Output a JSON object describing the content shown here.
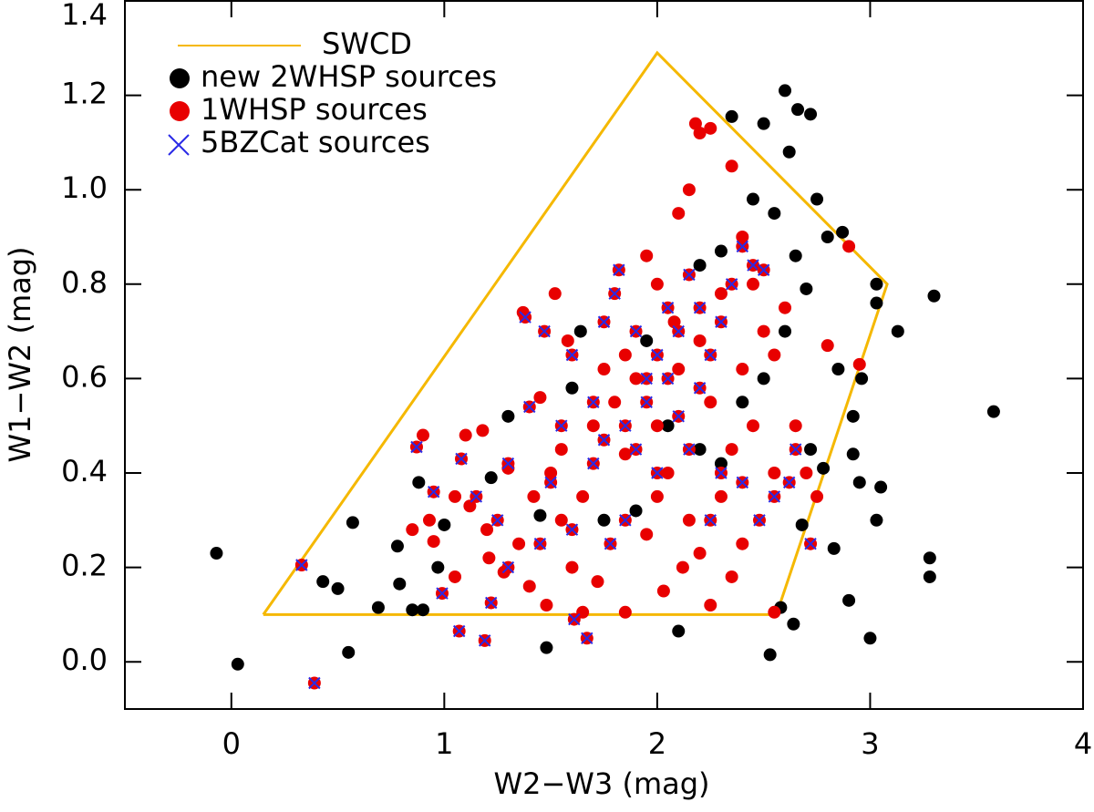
{
  "chart_data": {
    "type": "scatter",
    "xlabel": "W2−W3 (mag)",
    "ylabel": "W1−W2 (mag)",
    "xlim": [
      -0.5,
      4
    ],
    "ylim": [
      -0.1,
      1.4
    ],
    "xticks": [
      0,
      1,
      2,
      3,
      4
    ],
    "yticks": [
      {
        "value": 0.0,
        "label": "0.0"
      },
      0.2,
      0.4,
      0.6,
      0.8,
      {
        "value": 1.0,
        "label": "1.0"
      },
      1.2,
      1.4
    ],
    "legend": "upper left",
    "series": [
      {
        "name": "SWCD",
        "marker": "line",
        "color": "#f5b800",
        "x": [
          0.15,
          2.0,
          3.08,
          2.56,
          0.15
        ],
        "y": [
          0.1,
          1.29,
          0.8,
          0.1,
          0.1
        ]
      },
      {
        "name": "new 2WHSP sources",
        "marker": "o",
        "color": "#000000",
        "x": [
          -0.07,
          0.03,
          0.43,
          0.5,
          0.55,
          0.57,
          0.69,
          0.78,
          0.79,
          0.85,
          0.88,
          0.9,
          0.97,
          1.0,
          1.22,
          1.3,
          1.48,
          1.45,
          1.6,
          1.64,
          2.1,
          2.53,
          2.58,
          2.64,
          2.68,
          2.72,
          2.78,
          2.83,
          2.9,
          2.92,
          2.92,
          2.95,
          2.96,
          3.0,
          3.03,
          3.05,
          3.03,
          3.03,
          3.13,
          3.28,
          3.28,
          3.3,
          3.58,
          2.72,
          2.6,
          2.66,
          2.35,
          2.5,
          2.62,
          2.75,
          2.87,
          2.8,
          2.65,
          2.7,
          2.85,
          2.55,
          2.45,
          2.3,
          2.2,
          1.95,
          2.6,
          2.5,
          2.4,
          2.2,
          2.05,
          1.9,
          1.75,
          2.3
        ],
        "y": [
          0.23,
          -0.005,
          0.17,
          0.155,
          0.02,
          0.295,
          0.115,
          0.245,
          0.165,
          0.11,
          0.38,
          0.11,
          0.2,
          0.29,
          0.39,
          0.52,
          0.03,
          0.31,
          0.58,
          0.7,
          0.065,
          0.015,
          0.115,
          0.08,
          0.29,
          0.45,
          0.41,
          0.24,
          0.13,
          0.52,
          0.44,
          0.38,
          0.6,
          0.05,
          0.3,
          0.37,
          0.76,
          0.8,
          0.7,
          0.22,
          0.18,
          0.775,
          0.53,
          1.16,
          1.21,
          1.17,
          1.155,
          1.14,
          1.08,
          0.98,
          0.91,
          0.9,
          0.86,
          0.79,
          0.62,
          0.95,
          0.98,
          0.87,
          0.84,
          0.68,
          0.7,
          0.6,
          0.55,
          0.45,
          0.5,
          0.32,
          0.3,
          0.42
        ]
      },
      {
        "name": "1WHSP sources",
        "marker": "o",
        "color": "#e80000",
        "x": [
          1.21,
          1.1,
          1.05,
          0.93,
          0.95,
          1.12,
          1.2,
          1.28,
          1.37,
          1.52,
          1.35,
          1.42,
          1.5,
          1.55,
          1.6,
          1.48,
          1.65,
          1.85,
          2.03,
          2.12,
          2.25,
          2.4,
          2.55,
          2.35,
          2.2,
          1.7,
          1.75,
          1.8,
          1.85,
          1.9,
          1.95,
          2.0,
          2.05,
          2.08,
          2.1,
          2.15,
          2.2,
          2.25,
          2.18,
          2.35,
          2.4,
          2.45,
          2.5,
          2.55,
          2.6,
          2.65,
          2.7,
          2.75,
          2.8,
          2.9,
          2.95,
          2.45,
          2.3,
          2.15,
          1.95,
          1.65,
          1.58,
          1.45,
          1.3,
          1.18,
          0.9,
          0.85,
          1.05,
          1.4,
          1.72,
          1.55,
          2.0,
          2.25,
          2.4,
          2.55,
          2.3,
          2.0,
          1.85,
          2.1,
          2.2,
          2.35
        ],
        "y": [
          0.22,
          0.48,
          0.35,
          0.3,
          0.255,
          0.33,
          0.28,
          0.19,
          0.74,
          0.78,
          0.25,
          0.35,
          0.4,
          0.45,
          0.2,
          0.12,
          0.105,
          0.105,
          0.15,
          0.2,
          0.12,
          0.25,
          0.105,
          0.18,
          0.23,
          0.5,
          0.62,
          0.55,
          0.44,
          0.6,
          0.86,
          0.5,
          0.4,
          0.72,
          0.95,
          1.0,
          1.12,
          1.13,
          1.14,
          1.05,
          0.9,
          0.8,
          0.7,
          0.65,
          0.75,
          0.5,
          0.4,
          0.35,
          0.67,
          0.88,
          0.63,
          0.5,
          0.35,
          0.3,
          0.27,
          0.35,
          0.68,
          0.56,
          0.41,
          0.49,
          0.48,
          0.28,
          0.18,
          0.16,
          0.17,
          0.3,
          0.35,
          0.55,
          0.62,
          0.4,
          0.78,
          0.8,
          0.65,
          0.62,
          0.68,
          0.45
        ]
      },
      {
        "name": "5BZCat sources",
        "marker": "x",
        "color": "#2a2ae6",
        "x": [
          0.33,
          0.39,
          0.99,
          1.07,
          1.19,
          1.22,
          1.61,
          1.67,
          0.87,
          0.95,
          1.08,
          1.15,
          1.25,
          1.3,
          1.38,
          1.47,
          1.6,
          1.55,
          1.7,
          1.75,
          1.8,
          1.82,
          1.9,
          1.95,
          2.0,
          2.05,
          2.1,
          2.15,
          2.2,
          2.25,
          2.3,
          2.35,
          2.4,
          2.45,
          2.5,
          1.7,
          1.85,
          1.9,
          2.0,
          2.1,
          2.2,
          2.3,
          2.4,
          2.48,
          2.62,
          2.65,
          2.72,
          2.55,
          1.5,
          1.4,
          1.6,
          1.78,
          1.85,
          1.45,
          1.3,
          2.15,
          1.95,
          2.05,
          1.75,
          2.25
        ],
        "y": [
          0.205,
          -0.045,
          0.145,
          0.065,
          0.045,
          0.125,
          0.09,
          0.05,
          0.455,
          0.36,
          0.43,
          0.35,
          0.3,
          0.42,
          0.73,
          0.7,
          0.65,
          0.5,
          0.42,
          0.72,
          0.78,
          0.83,
          0.7,
          0.6,
          0.65,
          0.75,
          0.7,
          0.82,
          0.75,
          0.65,
          0.72,
          0.8,
          0.88,
          0.84,
          0.83,
          0.55,
          0.5,
          0.45,
          0.4,
          0.52,
          0.58,
          0.4,
          0.38,
          0.3,
          0.38,
          0.45,
          0.25,
          0.35,
          0.38,
          0.54,
          0.28,
          0.25,
          0.3,
          0.25,
          0.2,
          0.45,
          0.55,
          0.6,
          0.47,
          0.3
        ]
      }
    ]
  }
}
